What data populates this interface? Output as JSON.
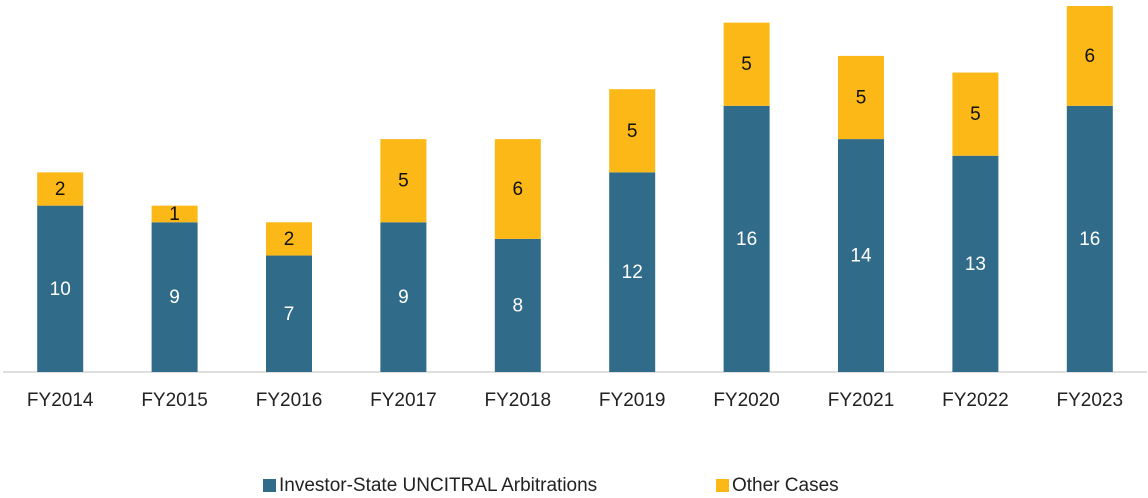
{
  "chart_data": {
    "type": "stacked_bar",
    "categories": [
      "FY2014",
      "FY2015",
      "FY2016",
      "FY2017",
      "FY2018",
      "FY2019",
      "FY2020",
      "FY2021",
      "FY2022",
      "FY2023"
    ],
    "series": [
      {
        "name": "Investor-State UNCITRAL Arbitrations",
        "color": "#306b8a",
        "values": [
          10,
          9,
          7,
          9,
          8,
          12,
          16,
          14,
          13,
          16
        ]
      },
      {
        "name": "Other Cases",
        "color": "#fbb817",
        "values": [
          2,
          1,
          2,
          5,
          6,
          5,
          5,
          5,
          5,
          6
        ]
      }
    ],
    "legend": "bottom"
  }
}
